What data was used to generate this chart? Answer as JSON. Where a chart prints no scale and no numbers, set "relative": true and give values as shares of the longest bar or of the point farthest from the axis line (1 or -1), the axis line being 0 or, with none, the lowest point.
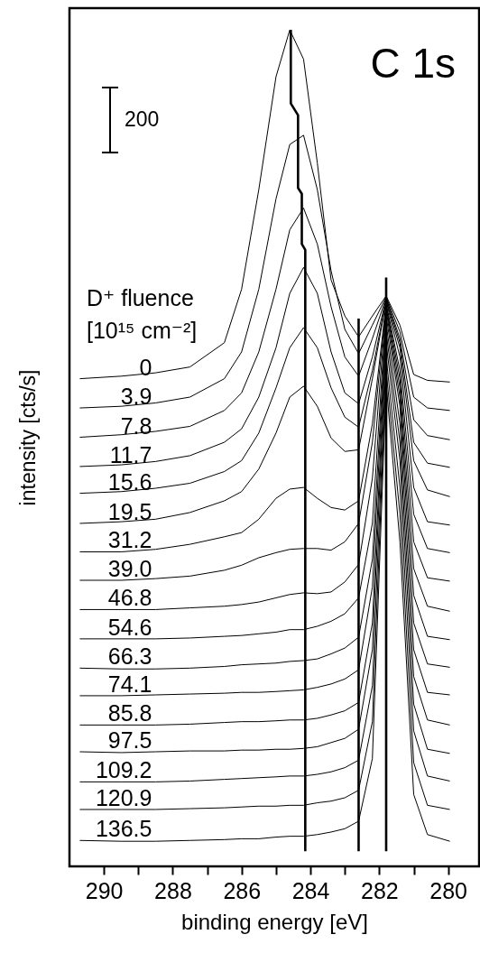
{
  "chart_data": {
    "type": "line",
    "title": "C 1s",
    "xlabel": "binding energy [eV]",
    "ylabel": "intensity [cts/s]",
    "legend_title": "D⁺ fluence [10¹⁵ cm⁻²]",
    "annotations": [
      "200"
    ],
    "relative": true,
    "tick_labels": "x",
    "xlim": [
      291,
      279.1
    ],
    "xticks": [
      290,
      {
        "value": 289,
        "label": null
      },
      288,
      {
        "value": 287,
        "label": null
      },
      286,
      {
        "value": 285,
        "label": null
      },
      284,
      {
        "value": 283,
        "label": null
      },
      282,
      {
        "value": 281,
        "label": null
      },
      280
    ],
    "x": [
      290.7,
      289.5,
      288.5,
      287.5,
      286.5,
      286,
      285.5,
      285,
      284.6,
      284.2,
      283.8,
      283.4,
      283,
      282.6,
      282.2,
      281.8,
      281.4,
      281,
      280.6,
      279.95
    ],
    "series": [
      {
        "name": "0",
        "color": "#000000",
        "values": [
          0.583,
          0.586,
          0.59,
          0.597,
          0.626,
          0.69,
          0.809,
          0.944,
          1,
          0.965,
          0.841,
          0.701,
          0.658,
          0.633,
          0.658,
          0.682,
          0.647,
          0.588,
          0.581,
          0.579
        ]
      },
      {
        "name": "3.9",
        "color": "#000000",
        "values": [
          0.548,
          0.55,
          0.554,
          0.561,
          0.583,
          0.615,
          0.69,
          0.798,
          0.863,
          0.874,
          0.809,
          0.712,
          0.642,
          0.613,
          0.647,
          0.681,
          0.639,
          0.561,
          0.548,
          0.545
        ]
      },
      {
        "name": "7.8",
        "color": "#000000",
        "values": [
          0.513,
          0.516,
          0.52,
          0.526,
          0.545,
          0.566,
          0.615,
          0.69,
          0.761,
          0.787,
          0.744,
          0.669,
          0.609,
          0.586,
          0.631,
          0.68,
          0.631,
          0.534,
          0.515,
          0.51
        ]
      },
      {
        "name": "11.7",
        "color": "#000000",
        "values": [
          0.478,
          0.48,
          0.484,
          0.491,
          0.507,
          0.523,
          0.561,
          0.62,
          0.685,
          0.716,
          0.685,
          0.615,
          0.566,
          0.553,
          0.609,
          0.679,
          0.626,
          0.507,
          0.482,
          0.477
        ]
      },
      {
        "name": "15.6",
        "color": "#000000",
        "values": [
          0.446,
          0.448,
          0.452,
          0.458,
          0.472,
          0.485,
          0.518,
          0.572,
          0.62,
          0.644,
          0.62,
          0.572,
          0.537,
          0.525,
          0.593,
          0.677,
          0.62,
          0.485,
          0.45,
          0.442
        ]
      },
      {
        "name": "19.5",
        "color": "#000000",
        "values": [
          0.41,
          0.412,
          0.415,
          0.423,
          0.437,
          0.448,
          0.475,
          0.518,
          0.561,
          0.574,
          0.55,
          0.512,
          0.496,
          0.498,
          0.583,
          0.676,
          0.609,
          0.453,
          0.412,
          0.408
        ]
      },
      {
        "name": "31.2",
        "color": "#000000",
        "values": [
          0.376,
          0.376,
          0.379,
          0.385,
          0.394,
          0.399,
          0.415,
          0.44,
          0.451,
          0.453,
          0.44,
          0.429,
          0.426,
          0.437,
          0.529,
          0.673,
          0.593,
          0.421,
          0.38,
          0.375
        ]
      },
      {
        "name": "39.0",
        "color": "#000000",
        "values": [
          0.342,
          0.342,
          0.344,
          0.347,
          0.354,
          0.36,
          0.369,
          0.375,
          0.379,
          0.38,
          0.38,
          0.378,
          0.388,
          0.41,
          0.507,
          0.671,
          0.583,
          0.388,
          0.345,
          0.341
        ]
      },
      {
        "name": "46.8",
        "color": "#000000",
        "values": [
          0.307,
          0.307,
          0.307,
          0.309,
          0.311,
          0.313,
          0.316,
          0.321,
          0.325,
          0.327,
          0.326,
          0.328,
          0.34,
          0.361,
          0.464,
          0.669,
          0.572,
          0.356,
          0.311,
          0.305
        ]
      },
      {
        "name": "54.6",
        "color": "#000000",
        "values": [
          0.272,
          0.272,
          0.272,
          0.273,
          0.275,
          0.276,
          0.278,
          0.28,
          0.283,
          0.283,
          0.287,
          0.293,
          0.302,
          0.321,
          0.41,
          0.665,
          0.561,
          0.324,
          0.275,
          0.271
        ]
      },
      {
        "name": "66.3",
        "color": "#000000",
        "values": [
          0.237,
          0.236,
          0.236,
          0.237,
          0.239,
          0.241,
          0.242,
          0.243,
          0.245,
          0.246,
          0.248,
          0.254,
          0.261,
          0.274,
          0.367,
          0.658,
          0.55,
          0.291,
          0.242,
          0.238
        ]
      },
      {
        "name": "74.1",
        "color": "#000000",
        "values": [
          0.204,
          0.204,
          0.205,
          0.206,
          0.207,
          0.208,
          0.208,
          0.209,
          0.21,
          0.211,
          0.214,
          0.218,
          0.224,
          0.235,
          0.334,
          0.649,
          0.529,
          0.259,
          0.208,
          0.205
        ]
      },
      {
        "name": "85.8",
        "color": "#000000",
        "values": [
          0.169,
          0.169,
          0.169,
          0.17,
          0.172,
          0.173,
          0.173,
          0.174,
          0.175,
          0.175,
          0.177,
          0.181,
          0.186,
          0.196,
          0.291,
          0.639,
          0.507,
          0.227,
          0.175,
          0.169
        ]
      },
      {
        "name": "97.5",
        "color": "#000000",
        "values": [
          0.137,
          0.136,
          0.137,
          0.138,
          0.138,
          0.139,
          0.139,
          0.14,
          0.14,
          0.141,
          0.143,
          0.148,
          0.153,
          0.164,
          0.259,
          0.626,
          0.485,
          0.194,
          0.14,
          0.135
        ]
      },
      {
        "name": "109.2",
        "color": "#000000",
        "values": [
          0.101,
          0.101,
          0.101,
          0.102,
          0.104,
          0.105,
          0.106,
          0.107,
          0.108,
          0.108,
          0.11,
          0.113,
          0.118,
          0.127,
          0.216,
          0.609,
          0.453,
          0.162,
          0.108,
          0.102
        ]
      },
      {
        "name": "120.9",
        "color": "#000000",
        "values": [
          0.068,
          0.068,
          0.068,
          0.069,
          0.07,
          0.071,
          0.072,
          0.072,
          0.073,
          0.073,
          0.076,
          0.078,
          0.082,
          0.091,
          0.173,
          0.593,
          0.421,
          0.124,
          0.073,
          0.068
        ]
      },
      {
        "name": "136.5",
        "color": "#000000",
        "values": [
          0.031,
          0.03,
          0.03,
          0.031,
          0.032,
          0.033,
          0.033,
          0.035,
          0.036,
          0.036,
          0.038,
          0.041,
          0.045,
          0.054,
          0.129,
          0.577,
          0.388,
          0.086,
          0.038,
          0.03
        ]
      },
      {
        "type": "line",
        "color": "#000000",
        "x": [
          284.57,
          284.57,
          284.36,
          284.36,
          284.25,
          284.25,
          284.15,
          284.15
        ],
        "values": [
          1,
          0.912,
          0.898,
          0.811,
          0.804,
          0.744,
          0.737,
          0.018
        ]
      },
      {
        "type": "line",
        "color": "#000000",
        "x": [
          282.6,
          282.6
        ],
        "values": [
          0.655,
          0.018
        ]
      },
      {
        "type": "line",
        "color": "#000000",
        "x": [
          281.8,
          281.8
        ],
        "values": [
          0.704,
          0.018
        ]
      }
    ]
  }
}
